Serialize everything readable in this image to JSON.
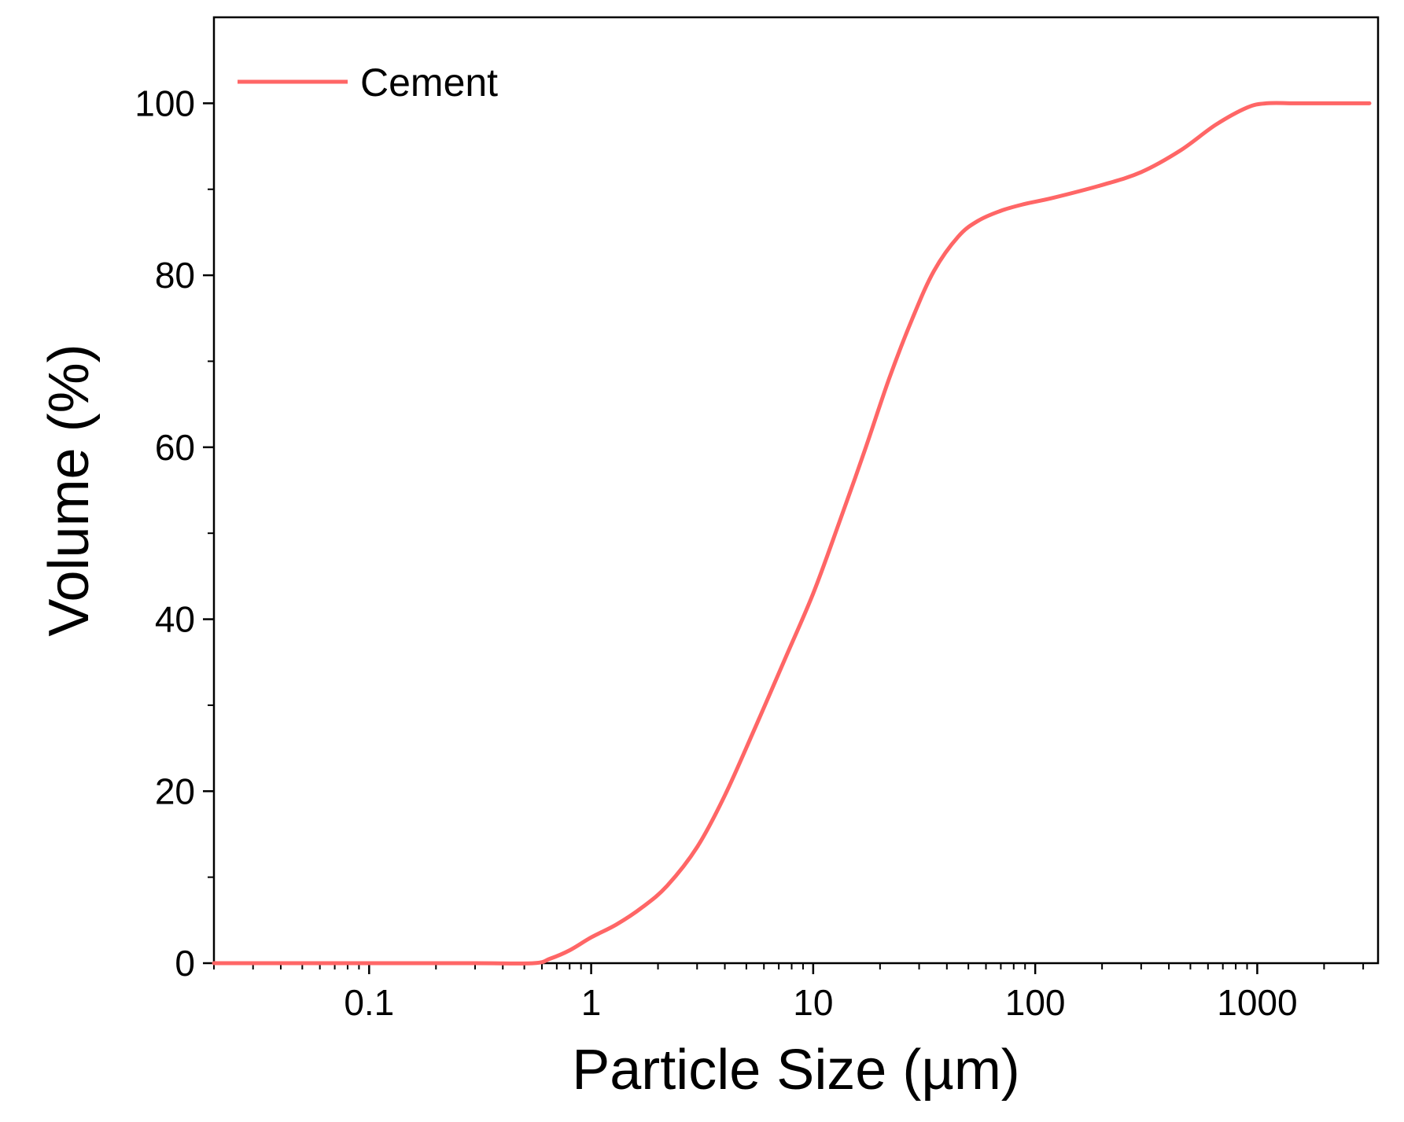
{
  "chart_data": {
    "type": "line",
    "title": "",
    "xlabel": "Particle Size (µm)",
    "ylabel": "Volume (%)",
    "xscale": "log",
    "xlim": [
      0.02,
      3500
    ],
    "ylim": [
      0,
      110
    ],
    "grid": false,
    "legend_position": "top-left",
    "x_ticks": [
      0.1,
      1,
      10,
      100,
      1000
    ],
    "x_tick_labels": [
      "0.1",
      "1",
      "10",
      "100",
      "1000"
    ],
    "y_ticks": [
      0,
      20,
      40,
      60,
      80,
      100
    ],
    "y_tick_labels": [
      "0",
      "20",
      "40",
      "60",
      "80",
      "100"
    ],
    "series": [
      {
        "name": "Cement",
        "color": "#ff6666",
        "x": [
          0.02,
          0.1,
          0.3,
          0.55,
          0.65,
          0.8,
          1.0,
          1.3,
          1.7,
          2.2,
          3.0,
          4.0,
          5.5,
          7.5,
          10,
          13,
          17,
          22,
          28,
          35,
          45,
          55,
          70,
          90,
          120,
          200,
          300,
          450,
          650,
          900,
          1100,
          1500,
          2000,
          3200
        ],
        "y": [
          0,
          0,
          0,
          0,
          0.5,
          1.5,
          3,
          4.5,
          6.5,
          9,
          13.5,
          19.5,
          27.5,
          35.5,
          43,
          51,
          59.5,
          68,
          75,
          80.5,
          84.5,
          86.3,
          87.5,
          88.3,
          89,
          90.5,
          92,
          94.5,
          97.5,
          99.5,
          100,
          100,
          100,
          100
        ]
      }
    ]
  }
}
